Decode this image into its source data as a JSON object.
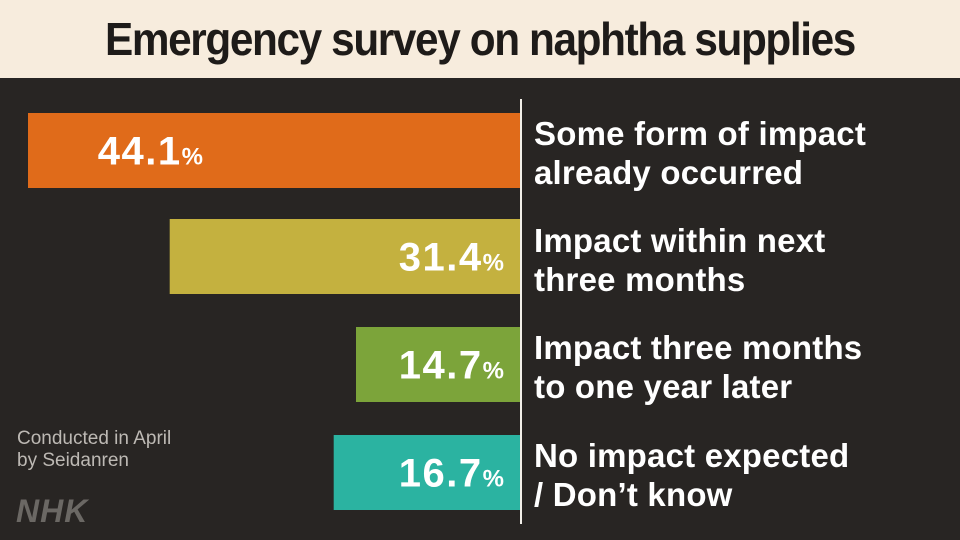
{
  "title": "Emergency survey on naphtha supplies",
  "note_lines": [
    "Conducted in April",
    "by Seidanren"
  ],
  "logo": "NHK",
  "colors": {
    "background": "#282523",
    "title_band": "#f7ecdd",
    "axis": "#f2efe9",
    "value_text": "#ffffff"
  },
  "chart_data": {
    "type": "bar",
    "orientation": "horizontal",
    "title": "Emergency survey on naphtha supplies",
    "categories": [
      "Some form of impact already occurred",
      "Impact within next three months",
      "Impact three months to one year later",
      "No impact expected / Don’t know"
    ],
    "category_lines": [
      [
        "Some form of impact",
        "already occurred"
      ],
      [
        "Impact within next",
        "three months"
      ],
      [
        "Impact three months",
        "to one year later"
      ],
      [
        "No impact expected",
        "/ Don’t know"
      ]
    ],
    "values": [
      44.1,
      31.4,
      14.7,
      16.7
    ],
    "value_labels": [
      "44.1",
      "31.4",
      "14.7",
      "16.7"
    ],
    "unit": "%",
    "bar_colors": [
      "#e06b1a",
      "#c4b13f",
      "#7ca43a",
      "#2bb3a1"
    ],
    "xlim": [
      0,
      44.1
    ],
    "grid": false,
    "legend": "none"
  }
}
